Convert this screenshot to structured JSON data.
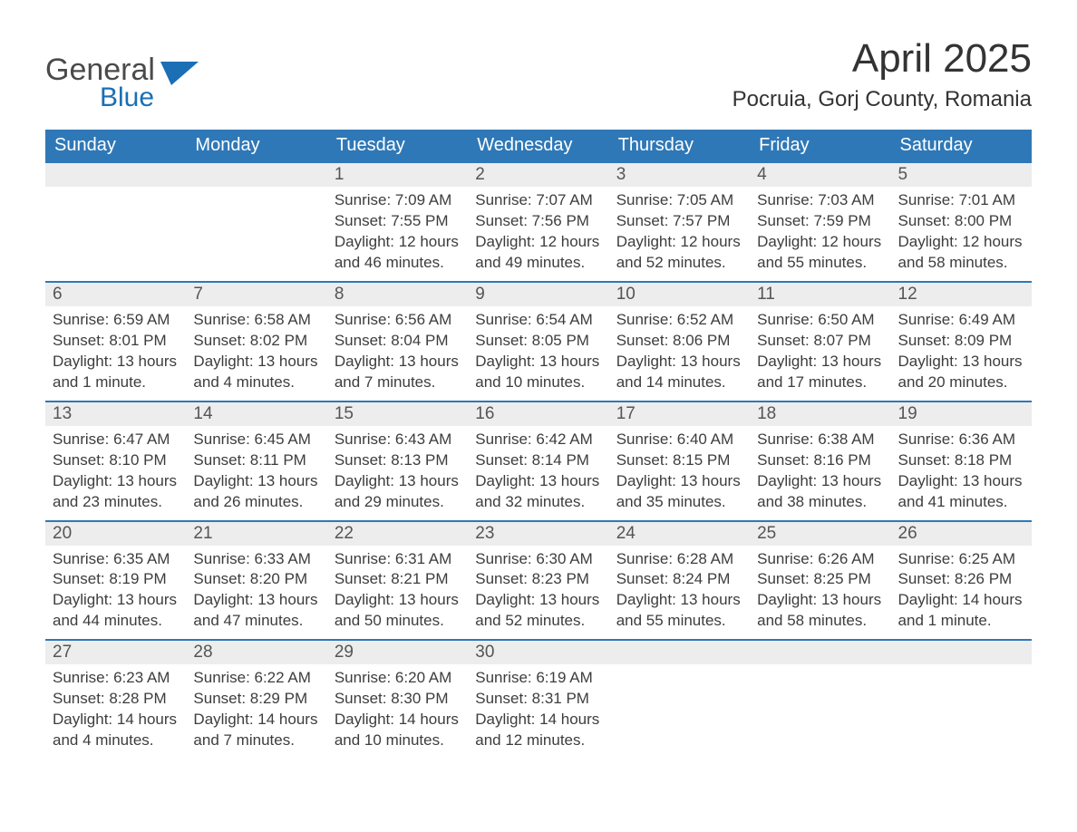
{
  "logo": {
    "word1": "General",
    "word2": "Blue"
  },
  "title": "April 2025",
  "location": "Pocruia, Gorj County, Romania",
  "colors": {
    "header_bg": "#2f78b7",
    "header_text": "#ffffff",
    "daynum_bg": "#ededed",
    "row_border": "#2f78b7",
    "logo_accent": "#1a6fb5",
    "body_text": "#3d3d3d"
  },
  "typography": {
    "title_fontsize": 44,
    "location_fontsize": 24,
    "weekday_fontsize": 20,
    "daynum_fontsize": 19,
    "body_fontsize": 17
  },
  "weekdays": [
    "Sunday",
    "Monday",
    "Tuesday",
    "Wednesday",
    "Thursday",
    "Friday",
    "Saturday"
  ],
  "weeks": [
    [
      null,
      null,
      {
        "n": "1",
        "sunrise": "Sunrise: 7:09 AM",
        "sunset": "Sunset: 7:55 PM",
        "daylight": "Daylight: 12 hours and 46 minutes."
      },
      {
        "n": "2",
        "sunrise": "Sunrise: 7:07 AM",
        "sunset": "Sunset: 7:56 PM",
        "daylight": "Daylight: 12 hours and 49 minutes."
      },
      {
        "n": "3",
        "sunrise": "Sunrise: 7:05 AM",
        "sunset": "Sunset: 7:57 PM",
        "daylight": "Daylight: 12 hours and 52 minutes."
      },
      {
        "n": "4",
        "sunrise": "Sunrise: 7:03 AM",
        "sunset": "Sunset: 7:59 PM",
        "daylight": "Daylight: 12 hours and 55 minutes."
      },
      {
        "n": "5",
        "sunrise": "Sunrise: 7:01 AM",
        "sunset": "Sunset: 8:00 PM",
        "daylight": "Daylight: 12 hours and 58 minutes."
      }
    ],
    [
      {
        "n": "6",
        "sunrise": "Sunrise: 6:59 AM",
        "sunset": "Sunset: 8:01 PM",
        "daylight": "Daylight: 13 hours and 1 minute."
      },
      {
        "n": "7",
        "sunrise": "Sunrise: 6:58 AM",
        "sunset": "Sunset: 8:02 PM",
        "daylight": "Daylight: 13 hours and 4 minutes."
      },
      {
        "n": "8",
        "sunrise": "Sunrise: 6:56 AM",
        "sunset": "Sunset: 8:04 PM",
        "daylight": "Daylight: 13 hours and 7 minutes."
      },
      {
        "n": "9",
        "sunrise": "Sunrise: 6:54 AM",
        "sunset": "Sunset: 8:05 PM",
        "daylight": "Daylight: 13 hours and 10 minutes."
      },
      {
        "n": "10",
        "sunrise": "Sunrise: 6:52 AM",
        "sunset": "Sunset: 8:06 PM",
        "daylight": "Daylight: 13 hours and 14 minutes."
      },
      {
        "n": "11",
        "sunrise": "Sunrise: 6:50 AM",
        "sunset": "Sunset: 8:07 PM",
        "daylight": "Daylight: 13 hours and 17 minutes."
      },
      {
        "n": "12",
        "sunrise": "Sunrise: 6:49 AM",
        "sunset": "Sunset: 8:09 PM",
        "daylight": "Daylight: 13 hours and 20 minutes."
      }
    ],
    [
      {
        "n": "13",
        "sunrise": "Sunrise: 6:47 AM",
        "sunset": "Sunset: 8:10 PM",
        "daylight": "Daylight: 13 hours and 23 minutes."
      },
      {
        "n": "14",
        "sunrise": "Sunrise: 6:45 AM",
        "sunset": "Sunset: 8:11 PM",
        "daylight": "Daylight: 13 hours and 26 minutes."
      },
      {
        "n": "15",
        "sunrise": "Sunrise: 6:43 AM",
        "sunset": "Sunset: 8:13 PM",
        "daylight": "Daylight: 13 hours and 29 minutes."
      },
      {
        "n": "16",
        "sunrise": "Sunrise: 6:42 AM",
        "sunset": "Sunset: 8:14 PM",
        "daylight": "Daylight: 13 hours and 32 minutes."
      },
      {
        "n": "17",
        "sunrise": "Sunrise: 6:40 AM",
        "sunset": "Sunset: 8:15 PM",
        "daylight": "Daylight: 13 hours and 35 minutes."
      },
      {
        "n": "18",
        "sunrise": "Sunrise: 6:38 AM",
        "sunset": "Sunset: 8:16 PM",
        "daylight": "Daylight: 13 hours and 38 minutes."
      },
      {
        "n": "19",
        "sunrise": "Sunrise: 6:36 AM",
        "sunset": "Sunset: 8:18 PM",
        "daylight": "Daylight: 13 hours and 41 minutes."
      }
    ],
    [
      {
        "n": "20",
        "sunrise": "Sunrise: 6:35 AM",
        "sunset": "Sunset: 8:19 PM",
        "daylight": "Daylight: 13 hours and 44 minutes."
      },
      {
        "n": "21",
        "sunrise": "Sunrise: 6:33 AM",
        "sunset": "Sunset: 8:20 PM",
        "daylight": "Daylight: 13 hours and 47 minutes."
      },
      {
        "n": "22",
        "sunrise": "Sunrise: 6:31 AM",
        "sunset": "Sunset: 8:21 PM",
        "daylight": "Daylight: 13 hours and 50 minutes."
      },
      {
        "n": "23",
        "sunrise": "Sunrise: 6:30 AM",
        "sunset": "Sunset: 8:23 PM",
        "daylight": "Daylight: 13 hours and 52 minutes."
      },
      {
        "n": "24",
        "sunrise": "Sunrise: 6:28 AM",
        "sunset": "Sunset: 8:24 PM",
        "daylight": "Daylight: 13 hours and 55 minutes."
      },
      {
        "n": "25",
        "sunrise": "Sunrise: 6:26 AM",
        "sunset": "Sunset: 8:25 PM",
        "daylight": "Daylight: 13 hours and 58 minutes."
      },
      {
        "n": "26",
        "sunrise": "Sunrise: 6:25 AM",
        "sunset": "Sunset: 8:26 PM",
        "daylight": "Daylight: 14 hours and 1 minute."
      }
    ],
    [
      {
        "n": "27",
        "sunrise": "Sunrise: 6:23 AM",
        "sunset": "Sunset: 8:28 PM",
        "daylight": "Daylight: 14 hours and 4 minutes."
      },
      {
        "n": "28",
        "sunrise": "Sunrise: 6:22 AM",
        "sunset": "Sunset: 8:29 PM",
        "daylight": "Daylight: 14 hours and 7 minutes."
      },
      {
        "n": "29",
        "sunrise": "Sunrise: 6:20 AM",
        "sunset": "Sunset: 8:30 PM",
        "daylight": "Daylight: 14 hours and 10 minutes."
      },
      {
        "n": "30",
        "sunrise": "Sunrise: 6:19 AM",
        "sunset": "Sunset: 8:31 PM",
        "daylight": "Daylight: 14 hours and 12 minutes."
      },
      null,
      null,
      null
    ]
  ]
}
